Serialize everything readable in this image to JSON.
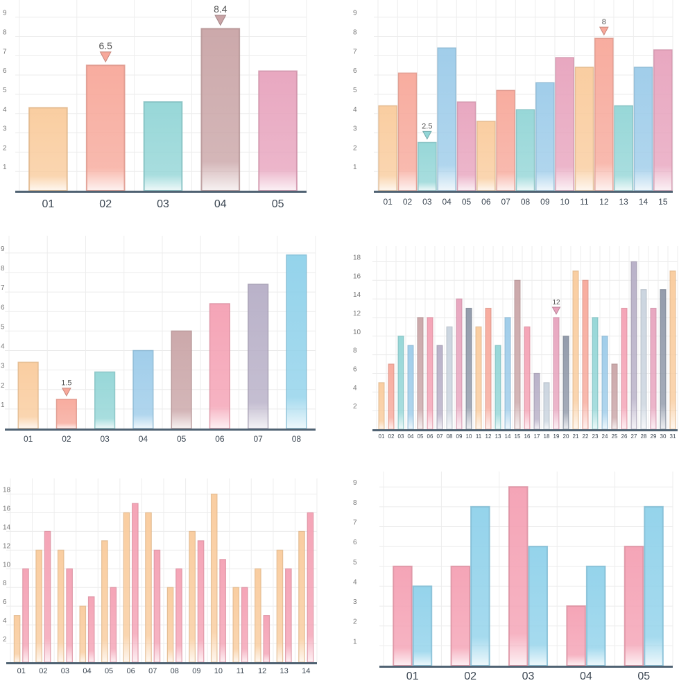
{
  "chart_data": [
    {
      "type": "bar",
      "categories": [
        "01",
        "02",
        "03",
        "04",
        "05"
      ],
      "values": [
        4.3,
        6.5,
        4.6,
        8.4,
        6.2
      ],
      "bar_colors": [
        "#f9cb9c",
        "#f7a89a",
        "#92d5d6",
        "#c9a4a6",
        "#e7a3bd"
      ],
      "yticks": [
        "1",
        "2",
        "3",
        "4",
        "5",
        "6",
        "7",
        "8",
        "9"
      ],
      "ylim": [
        0,
        9.6
      ],
      "annotations": [
        {
          "index": 1,
          "label": "6.5"
        },
        {
          "index": 3,
          "label": "8.4"
        }
      ],
      "grid": true
    },
    {
      "type": "bar",
      "categories": [
        "01",
        "02",
        "03",
        "04",
        "05",
        "06",
        "07",
        "08",
        "09",
        "10",
        "11",
        "12",
        "13",
        "14",
        "15"
      ],
      "values": [
        4.4,
        6.1,
        2.5,
        7.4,
        4.6,
        3.6,
        5.2,
        4.2,
        5.6,
        6.9,
        6.4,
        7.9,
        4.4,
        6.4,
        7.3
      ],
      "bar_colors": [
        "#f9cb9c",
        "#f7a89a",
        "#92d5d6",
        "#9ccbe9",
        "#e7a3bd",
        "#f9cb9c",
        "#f7a89a",
        "#92d5d6",
        "#9ccbe9",
        "#e7a3bd",
        "#f9cb9c",
        "#f7a89a",
        "#92d5d6",
        "#9ccbe9",
        "#e7a3bd"
      ],
      "yticks": [
        "1",
        "2",
        "3",
        "4",
        "5",
        "6",
        "7",
        "8",
        "9"
      ],
      "ylim": [
        0,
        9.6
      ],
      "annotations": [
        {
          "index": 2,
          "label": "2.5"
        },
        {
          "index": 11,
          "label": "8"
        }
      ],
      "grid": true
    },
    {
      "type": "bar",
      "categories": [
        "01",
        "02",
        "03",
        "04",
        "05",
        "06",
        "07",
        "08"
      ],
      "values": [
        3.4,
        1.5,
        2.9,
        4.0,
        5.0,
        6.4,
        7.4,
        8.9
      ],
      "bar_colors": [
        "#f9cb9c",
        "#f7a89a",
        "#92d5d6",
        "#9ccbe9",
        "#c9a4a6",
        "#f4a0b3",
        "#b6aec6",
        "#8fd1ea"
      ],
      "yticks": [
        "1",
        "2",
        "3",
        "4",
        "5",
        "6",
        "7",
        "8",
        "9"
      ],
      "ylim": [
        0,
        9.6
      ],
      "annotations": [
        {
          "index": 1,
          "label": "1.5"
        }
      ],
      "grid": true
    },
    {
      "type": "bar",
      "categories": [
        "01",
        "02",
        "03",
        "04",
        "05",
        "06",
        "07",
        "08",
        "09",
        "10",
        "11",
        "12",
        "13",
        "14",
        "15",
        "16",
        "17",
        "18",
        "19",
        "20",
        "21",
        "22",
        "23",
        "24",
        "25",
        "26",
        "27",
        "28",
        "29",
        "30",
        "31"
      ],
      "values": [
        5,
        7,
        10,
        9,
        12,
        12,
        9,
        11,
        14,
        13,
        11,
        13,
        9,
        12,
        16,
        11,
        6,
        5,
        12,
        10,
        17,
        16,
        12,
        10,
        7,
        13,
        18,
        15,
        13,
        15,
        17
      ],
      "bar_colors": [
        "#f9cb9c",
        "#f7a89a",
        "#92d5d6",
        "#9ccbe9",
        "#c9a4a6",
        "#f4a0b3",
        "#b6aec6",
        "#c9d3de",
        "#e7a3bd",
        "#8e97a8",
        "#f9cb9c",
        "#f7a89a",
        "#92d5d6",
        "#9ccbe9",
        "#c9a4a6",
        "#f4a0b3",
        "#b6aec6",
        "#c9d3de",
        "#e7a3bd",
        "#8e97a8",
        "#f9cb9c",
        "#f7a89a",
        "#92d5d6",
        "#9ccbe9",
        "#c9a4a6",
        "#f4a0b3",
        "#b6aec6",
        "#c9d3de",
        "#e7a3bd",
        "#8e97a8",
        "#f9cb9c"
      ],
      "yticks": [
        "2",
        "4",
        "6",
        "8",
        "10",
        "12",
        "14",
        "16",
        "18"
      ],
      "ylim": [
        0,
        19.3
      ],
      "annotations": [
        {
          "index": 18,
          "label": "12"
        }
      ],
      "grid": true
    },
    {
      "type": "bar",
      "categories": [
        "01",
        "02",
        "03",
        "04",
        "05",
        "06",
        "07",
        "08",
        "09",
        "10",
        "11",
        "12",
        "13",
        "14"
      ],
      "series": [
        {
          "values": [
            5,
            12,
            12,
            6,
            13,
            16,
            16,
            8,
            14,
            18,
            8,
            10,
            12,
            14
          ],
          "color": "#f9cb9c"
        },
        {
          "values": [
            10,
            14,
            10,
            7,
            8,
            17,
            12,
            10,
            13,
            11,
            8,
            5,
            10,
            16
          ],
          "color": "#f4a0b3"
        }
      ],
      "yticks": [
        "2",
        "4",
        "6",
        "8",
        "10",
        "12",
        "14",
        "16",
        "18"
      ],
      "ylim": [
        0,
        19.3
      ],
      "grid": true
    },
    {
      "type": "bar",
      "categories": [
        "01",
        "02",
        "03",
        "04",
        "05"
      ],
      "series": [
        {
          "values": [
            5,
            5,
            9,
            3,
            6
          ],
          "color": "#f4a0b3"
        },
        {
          "values": [
            4,
            8,
            6,
            5,
            8
          ],
          "color": "#8fd1ea"
        }
      ],
      "yticks": [
        "1",
        "2",
        "3",
        "4",
        "5",
        "6",
        "7",
        "8",
        "9"
      ],
      "ylim": [
        0,
        9.6
      ],
      "grid": true
    }
  ]
}
